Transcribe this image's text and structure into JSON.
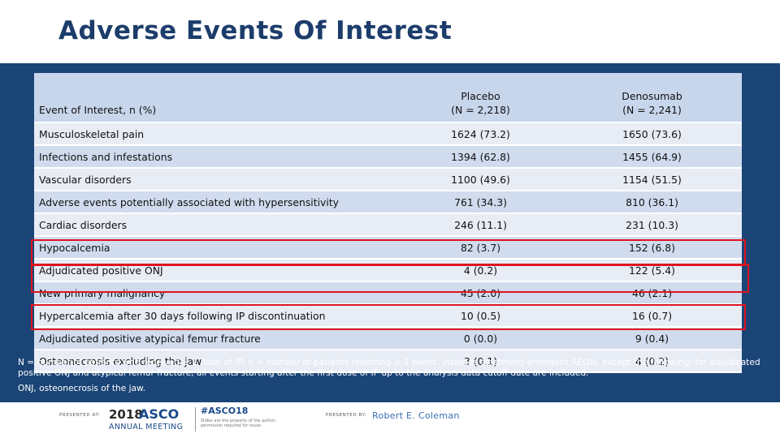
{
  "title": "Adverse Events Of Interest",
  "table": {
    "headers": {
      "event": "Event of Interest, n (%)",
      "placebo_line1": "Placebo",
      "placebo_line2": "(N = 2,218)",
      "denosumab_line1": "Denosumab",
      "denosumab_line2": "(N = 2,241)"
    },
    "rows": [
      {
        "event": "Musculoskeletal pain",
        "placebo": "1624 (73.2)",
        "denosumab": "1650 (73.6)"
      },
      {
        "event": "Infections and infestations",
        "placebo": "1394 (62.8)",
        "denosumab": "1455 (64.9)"
      },
      {
        "event": "Vascular disorders",
        "placebo": "1100 (49.6)",
        "denosumab": "1154 (51.5)"
      },
      {
        "event": "Adverse events potentially associated with hypersensitivity",
        "placebo": "761 (34.3)",
        "denosumab": "810 (36.1)"
      },
      {
        "event": "Cardiac disorders",
        "placebo": "246 (11.1)",
        "denosumab": "231 (10.3)"
      },
      {
        "event": "Hypocalcemia",
        "placebo": "82 (3.7)",
        "denosumab": "152 (6.8)"
      },
      {
        "event": "Adjudicated positive ONJ",
        "placebo": "4 (0.2)",
        "denosumab": "122 (5.4)"
      },
      {
        "event": "New primary malignancy",
        "placebo": "45 (2.0)",
        "denosumab": "46 (2.1)"
      },
      {
        "event": "Hypercalcemia after 30 days following IP discontinuation",
        "placebo": "10 (0.5)",
        "denosumab": "16 (0.7)"
      },
      {
        "event": "Adjudicated positive atypical femur fracture",
        "placebo": "0 (0.0)",
        "denosumab": "9 (0.4)"
      },
      {
        "event": "Osteonecrosis excluding the jaw",
        "placebo": "3 (0.1)",
        "denosumab": "4 (0.2)"
      }
    ]
  },
  "footnote": {
    "line1": "N = number of patients who received ≥ 1 dose of IP; n = number of patients reporting ≥ 1 event. Includes treatment-emergent AEOIs, except the following: for adjudicated positive ONJ and atypical femur fracture, all events starting after the first dose of IP up to the analysis data cutoff date are included.",
    "line2": "ONJ, osteonecrosis of the jaw."
  },
  "footer": {
    "presented_at": "PRESENTED AT:",
    "logo_year": "2018",
    "logo_name": "ASCO",
    "logo_sub": "ANNUAL MEETING",
    "hashtag": "#ASCO18",
    "hashtag_note": "Slides are the property of the author, permission required for reuse.",
    "presented_by": "PRESENTED BY:",
    "presenter": "Robert E. Coleman"
  },
  "colors": {
    "background": "#1b4576",
    "highlight_box": "#e0141e",
    "header_row": "#c8d6ec"
  }
}
